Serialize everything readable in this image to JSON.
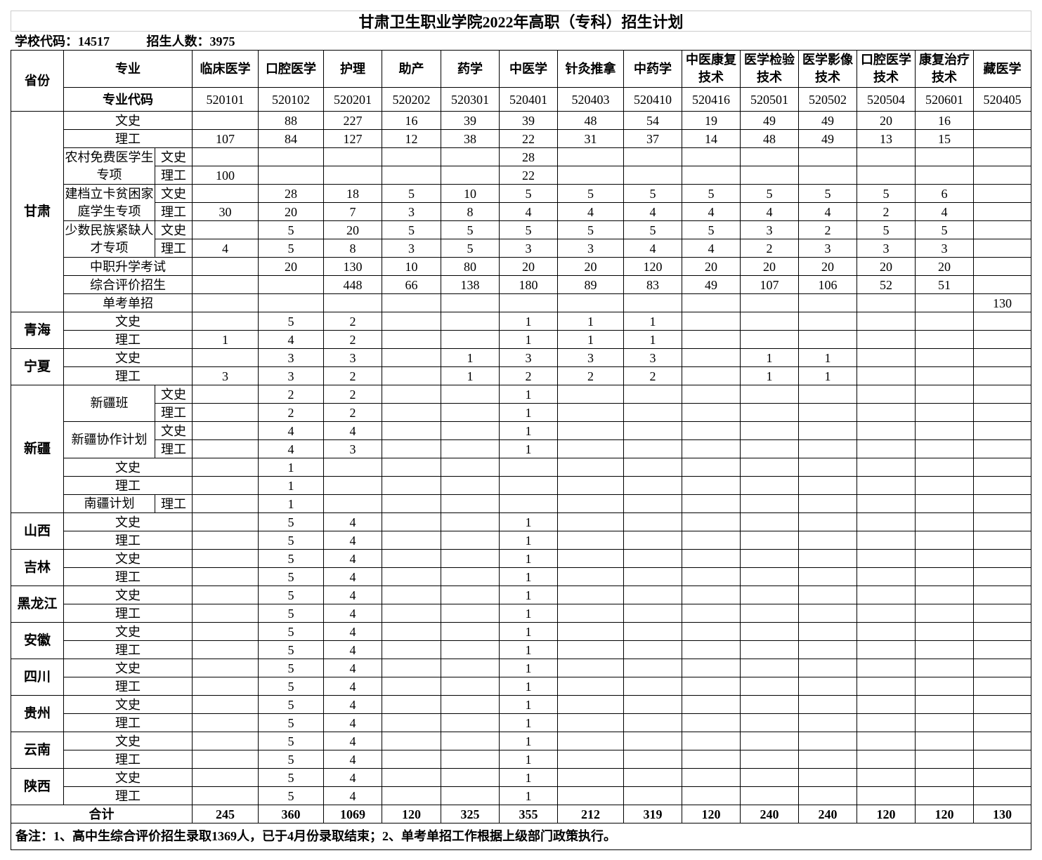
{
  "title": "甘肃卫生职业学院2022年高职（专科）招生计划",
  "info": {
    "school_code": "学校代码：14517",
    "enroll_count": "招生人数：3975"
  },
  "header": {
    "province": "省份",
    "major": "专业",
    "major_code": "专业代码",
    "majors": [
      "临床医学",
      "口腔医学",
      "护理",
      "助产",
      "药学",
      "中医学",
      "针灸推拿",
      "中药学",
      "中医康复技术",
      "医学检验技术",
      "医学影像技术",
      "口腔医学技术",
      "康复治疗技术",
      "藏医学"
    ],
    "codes": [
      "520101",
      "520102",
      "520201",
      "520202",
      "520301",
      "520401",
      "520403",
      "520410",
      "520416",
      "520501",
      "520502",
      "520504",
      "520601",
      "520405"
    ]
  },
  "rows": [
    {
      "prov": "甘肃",
      "provSpan": 11,
      "label": "文史",
      "values": [
        "",
        "88",
        "227",
        "16",
        "39",
        "39",
        "48",
        "54",
        "19",
        "49",
        "49",
        "20",
        "16",
        ""
      ]
    },
    {
      "label": "理工",
      "values": [
        "107",
        "84",
        "127",
        "12",
        "38",
        "22",
        "31",
        "37",
        "14",
        "48",
        "49",
        "13",
        "15",
        ""
      ]
    },
    {
      "group": "农村免费医学生专项",
      "groupSpan": 2,
      "sub": "文史",
      "values": [
        "",
        "",
        "",
        "",
        "",
        "28",
        "",
        "",
        "",
        "",
        "",
        "",
        "",
        ""
      ]
    },
    {
      "sub": "理工",
      "values": [
        "100",
        "",
        "",
        "",
        "",
        "22",
        "",
        "",
        "",
        "",
        "",
        "",
        "",
        ""
      ]
    },
    {
      "group": "建档立卡贫困家庭学生专项",
      "groupSpan": 2,
      "sub": "文史",
      "values": [
        "",
        "28",
        "18",
        "5",
        "10",
        "5",
        "5",
        "5",
        "5",
        "5",
        "5",
        "5",
        "6",
        ""
      ]
    },
    {
      "sub": "理工",
      "values": [
        "30",
        "20",
        "7",
        "3",
        "8",
        "4",
        "4",
        "4",
        "4",
        "4",
        "4",
        "2",
        "4",
        ""
      ]
    },
    {
      "group": "少数民族紧缺人才专项",
      "groupSpan": 2,
      "sub": "文史",
      "values": [
        "",
        "5",
        "20",
        "5",
        "5",
        "5",
        "5",
        "5",
        "5",
        "3",
        "2",
        "5",
        "5",
        ""
      ]
    },
    {
      "sub": "理工",
      "values": [
        "4",
        "5",
        "8",
        "3",
        "5",
        "3",
        "3",
        "4",
        "4",
        "2",
        "3",
        "3",
        "3",
        ""
      ]
    },
    {
      "label": "中职升学考试",
      "values": [
        "",
        "20",
        "130",
        "10",
        "80",
        "20",
        "20",
        "120",
        "20",
        "20",
        "20",
        "20",
        "20",
        ""
      ]
    },
    {
      "label": "综合评价招生",
      "values": [
        "",
        "",
        "448",
        "66",
        "138",
        "180",
        "89",
        "83",
        "49",
        "107",
        "106",
        "52",
        "51",
        ""
      ]
    },
    {
      "label": "单考单招",
      "values": [
        "",
        "",
        "",
        "",
        "",
        "",
        "",
        "",
        "",
        "",
        "",
        "",
        "",
        "130"
      ]
    },
    {
      "prov": "青海",
      "provSpan": 2,
      "label": "文史",
      "values": [
        "",
        "5",
        "2",
        "",
        "",
        "1",
        "1",
        "1",
        "",
        "",
        "",
        "",
        "",
        ""
      ]
    },
    {
      "label": "理工",
      "values": [
        "1",
        "4",
        "2",
        "",
        "",
        "1",
        "1",
        "1",
        "",
        "",
        "",
        "",
        "",
        ""
      ]
    },
    {
      "prov": "宁夏",
      "provSpan": 2,
      "label": "文史",
      "values": [
        "",
        "3",
        "3",
        "",
        "1",
        "3",
        "3",
        "3",
        "",
        "1",
        "1",
        "",
        "",
        ""
      ]
    },
    {
      "label": "理工",
      "values": [
        "3",
        "3",
        "2",
        "",
        "1",
        "2",
        "2",
        "2",
        "",
        "1",
        "1",
        "",
        "",
        ""
      ]
    },
    {
      "prov": "新疆",
      "provSpan": 7,
      "group": "新疆班",
      "groupSpan": 2,
      "sub": "文史",
      "values": [
        "",
        "2",
        "2",
        "",
        "",
        "1",
        "",
        "",
        "",
        "",
        "",
        "",
        "",
        ""
      ]
    },
    {
      "sub": "理工",
      "values": [
        "",
        "2",
        "2",
        "",
        "",
        "1",
        "",
        "",
        "",
        "",
        "",
        "",
        "",
        ""
      ]
    },
    {
      "group": "新疆协作计划",
      "groupSpan": 2,
      "sub": "文史",
      "values": [
        "",
        "4",
        "4",
        "",
        "",
        "1",
        "",
        "",
        "",
        "",
        "",
        "",
        "",
        ""
      ]
    },
    {
      "sub": "理工",
      "values": [
        "",
        "4",
        "3",
        "",
        "",
        "1",
        "",
        "",
        "",
        "",
        "",
        "",
        "",
        ""
      ]
    },
    {
      "label": "文史",
      "values": [
        "",
        "1",
        "",
        "",
        "",
        "",
        "",
        "",
        "",
        "",
        "",
        "",
        "",
        ""
      ]
    },
    {
      "label": "理工",
      "values": [
        "",
        "1",
        "",
        "",
        "",
        "",
        "",
        "",
        "",
        "",
        "",
        "",
        "",
        ""
      ]
    },
    {
      "group": "南疆计划",
      "groupSpan": 1,
      "sub": "理工",
      "values": [
        "",
        "1",
        "",
        "",
        "",
        "",
        "",
        "",
        "",
        "",
        "",
        "",
        "",
        ""
      ]
    },
    {
      "prov": "山西",
      "provSpan": 2,
      "label": "文史",
      "values": [
        "",
        "5",
        "4",
        "",
        "",
        "1",
        "",
        "",
        "",
        "",
        "",
        "",
        "",
        ""
      ]
    },
    {
      "label": "理工",
      "values": [
        "",
        "5",
        "4",
        "",
        "",
        "1",
        "",
        "",
        "",
        "",
        "",
        "",
        "",
        ""
      ]
    },
    {
      "prov": "吉林",
      "provSpan": 2,
      "label": "文史",
      "values": [
        "",
        "5",
        "4",
        "",
        "",
        "1",
        "",
        "",
        "",
        "",
        "",
        "",
        "",
        ""
      ]
    },
    {
      "label": "理工",
      "values": [
        "",
        "5",
        "4",
        "",
        "",
        "1",
        "",
        "",
        "",
        "",
        "",
        "",
        "",
        ""
      ]
    },
    {
      "prov": "黑龙江",
      "provSpan": 2,
      "label": "文史",
      "values": [
        "",
        "5",
        "4",
        "",
        "",
        "1",
        "",
        "",
        "",
        "",
        "",
        "",
        "",
        ""
      ]
    },
    {
      "label": "理工",
      "values": [
        "",
        "5",
        "4",
        "",
        "",
        "1",
        "",
        "",
        "",
        "",
        "",
        "",
        "",
        ""
      ]
    },
    {
      "prov": "安徽",
      "provSpan": 2,
      "label": "文史",
      "values": [
        "",
        "5",
        "4",
        "",
        "",
        "1",
        "",
        "",
        "",
        "",
        "",
        "",
        "",
        ""
      ]
    },
    {
      "label": "理工",
      "values": [
        "",
        "5",
        "4",
        "",
        "",
        "1",
        "",
        "",
        "",
        "",
        "",
        "",
        "",
        ""
      ]
    },
    {
      "prov": "四川",
      "provSpan": 2,
      "label": "文史",
      "values": [
        "",
        "5",
        "4",
        "",
        "",
        "1",
        "",
        "",
        "",
        "",
        "",
        "",
        "",
        ""
      ]
    },
    {
      "label": "理工",
      "values": [
        "",
        "5",
        "4",
        "",
        "",
        "1",
        "",
        "",
        "",
        "",
        "",
        "",
        "",
        ""
      ]
    },
    {
      "prov": "贵州",
      "provSpan": 2,
      "label": "文史",
      "values": [
        "",
        "5",
        "4",
        "",
        "",
        "1",
        "",
        "",
        "",
        "",
        "",
        "",
        "",
        ""
      ]
    },
    {
      "label": "理工",
      "values": [
        "",
        "5",
        "4",
        "",
        "",
        "1",
        "",
        "",
        "",
        "",
        "",
        "",
        "",
        ""
      ]
    },
    {
      "prov": "云南",
      "provSpan": 2,
      "label": "文史",
      "values": [
        "",
        "5",
        "4",
        "",
        "",
        "1",
        "",
        "",
        "",
        "",
        "",
        "",
        "",
        ""
      ]
    },
    {
      "label": "理工",
      "values": [
        "",
        "5",
        "4",
        "",
        "",
        "1",
        "",
        "",
        "",
        "",
        "",
        "",
        "",
        ""
      ]
    },
    {
      "prov": "陕西",
      "provSpan": 2,
      "label": "文史",
      "values": [
        "",
        "5",
        "4",
        "",
        "",
        "1",
        "",
        "",
        "",
        "",
        "",
        "",
        "",
        ""
      ]
    },
    {
      "label": "理工",
      "values": [
        "",
        "5",
        "4",
        "",
        "",
        "1",
        "",
        "",
        "",
        "",
        "",
        "",
        "",
        ""
      ]
    }
  ],
  "total": {
    "label": "合计",
    "values": [
      "245",
      "360",
      "1069",
      "120",
      "325",
      "355",
      "212",
      "319",
      "120",
      "240",
      "240",
      "120",
      "120",
      "130"
    ]
  },
  "note": "备注：1、高中生综合评价招生录取1369人，已于4月份录取结束；2、单考单招工作根据上级部门政策执行。"
}
